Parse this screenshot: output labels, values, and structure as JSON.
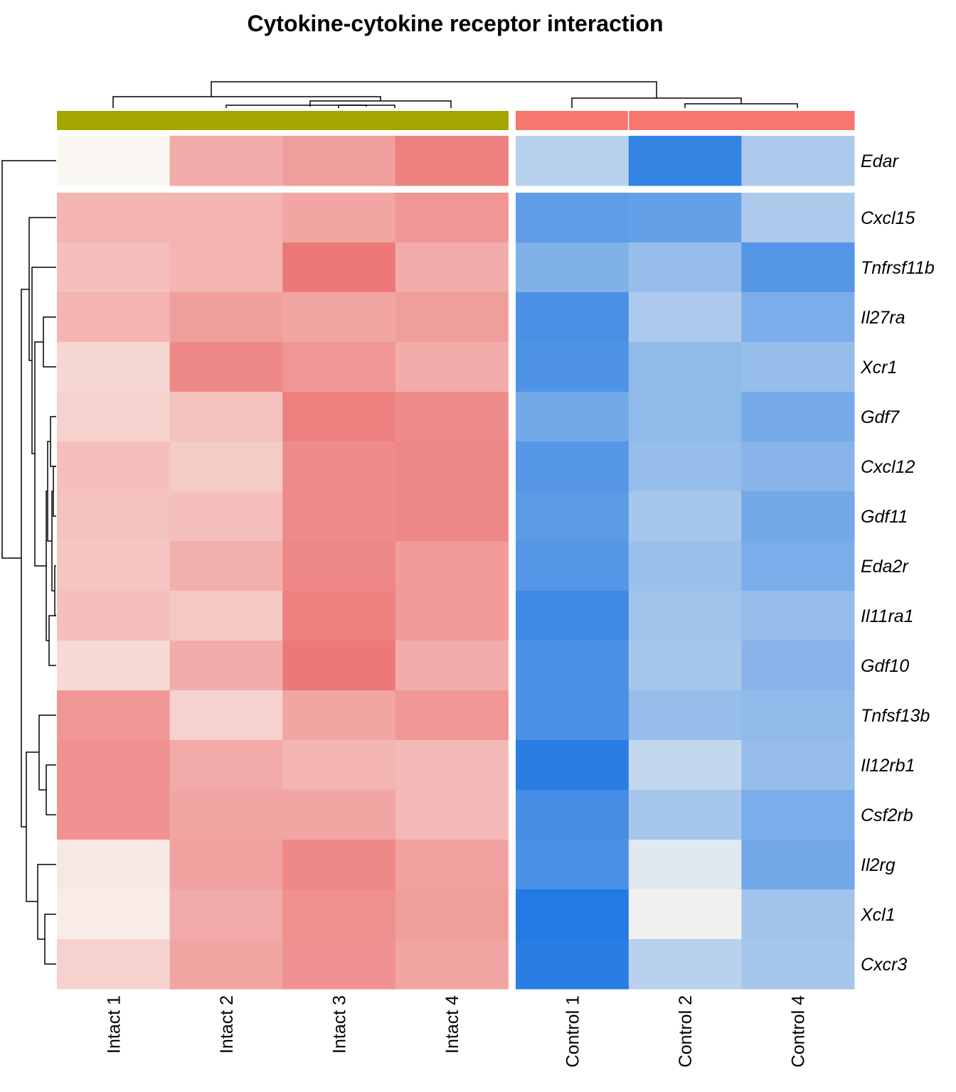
{
  "chart_data": {
    "type": "heatmap",
    "title": "Cytokine-cytokine receptor interaction",
    "columns": [
      "Intact 1",
      "Intact 2",
      "Intact 3",
      "Intact 4",
      "Control 1",
      "Control 2",
      "Control 4"
    ],
    "column_groups": [
      {
        "name": "Intact",
        "color": "#A3A500",
        "members": [
          "Intact 1",
          "Intact 2",
          "Intact 3",
          "Intact 4"
        ]
      },
      {
        "name": "Control",
        "color": "#F8766D",
        "members": [
          "Control 1",
          "Control 2",
          "Control 4"
        ]
      }
    ],
    "row_groups": [
      {
        "rows": [
          "Edar"
        ]
      },
      {
        "rows": [
          "Cxcl15",
          "Tnfrsf11b",
          "Il27ra",
          "Xcr1",
          "Gdf7",
          "Cxcl12",
          "Gdf11",
          "Eda2r",
          "Il11ra1",
          "Gdf10",
          "Tnfsf13b",
          "Il12rb1",
          "Csf2rb",
          "Il2rg",
          "Xcl1",
          "Cxcr3"
        ]
      }
    ],
    "rows": [
      "Edar",
      "Cxcl15",
      "Tnfrsf11b",
      "Il27ra",
      "Xcr1",
      "Gdf7",
      "Cxcl12",
      "Gdf11",
      "Eda2r",
      "Il11ra1",
      "Gdf10",
      "Tnfsf13b",
      "Il12rb1",
      "Csf2rb",
      "Il2rg",
      "Xcl1",
      "Cxcr3"
    ],
    "color_scale": {
      "low": "#1E77E2",
      "mid": "#FAF7F2",
      "high": "#EA6363",
      "range": [
        -1,
        1
      ]
    },
    "values": [
      [
        0.0,
        0.5,
        0.6,
        0.8,
        -0.3,
        -0.9,
        -0.35
      ],
      [
        0.45,
        0.45,
        0.55,
        0.65,
        -0.7,
        -0.68,
        -0.35
      ],
      [
        0.38,
        0.45,
        0.85,
        0.5,
        -0.55,
        -0.45,
        -0.75
      ],
      [
        0.45,
        0.6,
        0.55,
        0.6,
        -0.8,
        -0.35,
        -0.58
      ],
      [
        0.22,
        0.75,
        0.65,
        0.5,
        -0.78,
        -0.48,
        -0.45
      ],
      [
        0.25,
        0.35,
        0.8,
        0.72,
        -0.62,
        -0.48,
        -0.6
      ],
      [
        0.38,
        0.3,
        0.72,
        0.75,
        -0.75,
        -0.45,
        -0.52
      ],
      [
        0.35,
        0.38,
        0.72,
        0.75,
        -0.72,
        -0.38,
        -0.62
      ],
      [
        0.33,
        0.48,
        0.75,
        0.62,
        -0.75,
        -0.43,
        -0.58
      ],
      [
        0.38,
        0.32,
        0.8,
        0.62,
        -0.85,
        -0.4,
        -0.45
      ],
      [
        0.2,
        0.5,
        0.85,
        0.5,
        -0.8,
        -0.38,
        -0.52
      ],
      [
        0.65,
        0.25,
        0.55,
        0.65,
        -0.8,
        -0.45,
        -0.48
      ],
      [
        0.68,
        0.52,
        0.45,
        0.42,
        -0.95,
        -0.25,
        -0.45
      ],
      [
        0.68,
        0.55,
        0.55,
        0.42,
        -0.82,
        -0.38,
        -0.58
      ],
      [
        0.1,
        0.58,
        0.75,
        0.58,
        -0.8,
        -0.12,
        -0.62
      ],
      [
        0.08,
        0.52,
        0.7,
        0.6,
        -0.98,
        -0.05,
        -0.4
      ],
      [
        0.25,
        0.55,
        0.68,
        0.55,
        -0.95,
        -0.3,
        -0.38
      ]
    ],
    "row_dendrogram": {
      "leaves": [
        "Edar",
        "Cxcl15",
        "Tnfrsf11b",
        "Il27ra",
        "Xcr1",
        "Gdf7",
        "Cxcl12",
        "Gdf11",
        "Eda2r",
        "Il11ra1",
        "Gdf10",
        "Tnfsf13b",
        "Il12rb1",
        "Csf2rb",
        "Il2rg",
        "Xcl1",
        "Cxcr3"
      ]
    },
    "column_dendrogram": {
      "leaves": [
        "Intact 1",
        "Intact 2",
        "Intact 3",
        "Intact 4",
        "Control 1",
        "Control 2",
        "Control 4"
      ]
    },
    "legend": "none"
  }
}
